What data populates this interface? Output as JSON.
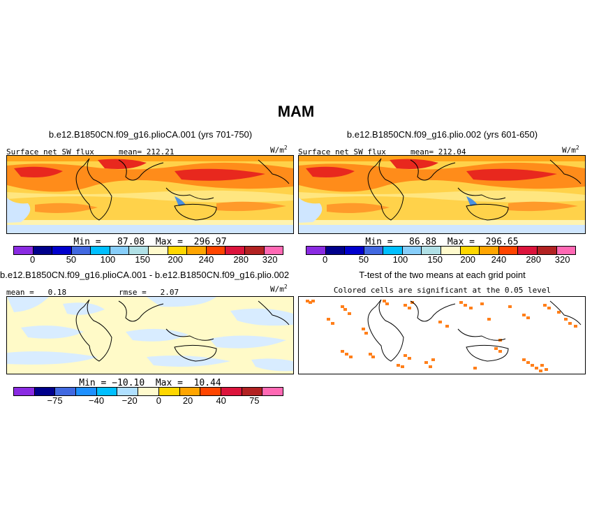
{
  "figure_title": "MAM",
  "panels": {
    "p1": {
      "title": "b.e12.B1850CN.f09_g16.plioCA.001 (yrs 701-750)",
      "left_label": "Surface net SW flux",
      "mean_label": "mean= 212.21",
      "units": "W/m",
      "units_sup": "2",
      "minmax": "Min =   87.08  Max =  296.97"
    },
    "p2": {
      "title": "b.e12.B1850CN.f09_g16.plio.002 (yrs 601-650)",
      "left_label": "Surface net SW flux",
      "mean_label": "mean= 212.04",
      "units": "W/m",
      "units_sup": "2",
      "minmax": "Min =   86.88  Max =  296.65"
    },
    "p3": {
      "title": "b.e12.B1850CN.f09_g16.plioCA.001 - b.e12.B1850CN.f09_g16.plio.002",
      "mean_label": "mean =   0.18",
      "rmse_label": "rmse =   2.07",
      "units": "W/m",
      "units_sup": "2",
      "minmax": "Min = −10.10  Max =  10.44"
    },
    "p4": {
      "title": "T-test of the two means at each grid point",
      "subtitle": "Colored cells are significant at the 0.05 level"
    }
  },
  "colorbars": {
    "abs": {
      "colors": [
        "#8a2be2",
        "#00008b",
        "#0000cd",
        "#4169e1",
        "#00bfff",
        "#87cefa",
        "#b0e0e6",
        "#fffacd",
        "#ffd700",
        "#ffa500",
        "#ff4500",
        "#dc143c",
        "#b22222",
        "#ff69b4"
      ],
      "ticks": [
        "0",
        "50",
        "100",
        "150",
        "200",
        "240",
        "280",
        "320"
      ]
    },
    "diff": {
      "colors": [
        "#8a2be2",
        "#00008b",
        "#4169e1",
        "#1e90ff",
        "#00bfff",
        "#b0e0ff",
        "#fffacd",
        "#ffd700",
        "#ffa500",
        "#ff4500",
        "#dc143c",
        "#b22222",
        "#ff69b4"
      ],
      "ticks": [
        "−75",
        "−40",
        "−20",
        "0",
        "20",
        "40",
        "75"
      ]
    }
  },
  "colors": {
    "map_bg_warm": "#ffd24a",
    "band_red": "#e8281e",
    "band_orange": "#ff8c1a",
    "light_blue": "#d8ecff",
    "diff_yellow": "#fffac8",
    "significant": "#ff7f1a"
  }
}
